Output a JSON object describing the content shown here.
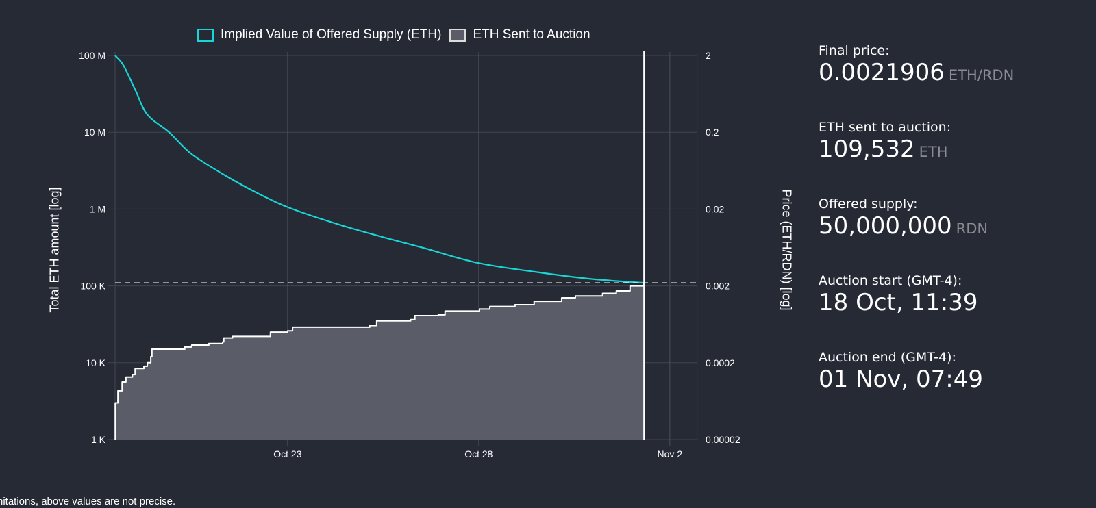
{
  "chart_data": {
    "type": "area",
    "legend": [
      {
        "name": "Implied Value of Offered Supply (ETH)",
        "style": "line",
        "color": "#19d6d6"
      },
      {
        "name": "ETH Sent to Auction",
        "style": "area",
        "color": "#5a5d67"
      }
    ],
    "legend_position": "top-center",
    "xlabel": "",
    "ylabel_left": "Total ETH amount [log]",
    "ylabel_right": "Price (ETH/RDN) [log]",
    "yscale": "log",
    "ylim_left": [
      1000,
      100000000
    ],
    "ylim_right": [
      2e-05,
      2
    ],
    "yticks_left": [
      {
        "value": 100000000,
        "label": "100 M"
      },
      {
        "value": 10000000,
        "label": "10 M"
      },
      {
        "value": 1000000,
        "label": "1 M"
      },
      {
        "value": 100000,
        "label": "100 K"
      },
      {
        "value": 10000,
        "label": "10 K"
      },
      {
        "value": 1000,
        "label": "1 K"
      }
    ],
    "yticks_right": [
      {
        "value": 2,
        "label": "2"
      },
      {
        "value": 0.2,
        "label": "0.2"
      },
      {
        "value": 0.02,
        "label": "0.02"
      },
      {
        "value": 0.002,
        "label": "0.002"
      },
      {
        "value": 0.0002,
        "label": "0.0002"
      },
      {
        "value": 2e-05,
        "label": "0.00002"
      }
    ],
    "x_unit": "days since Oct 18 00:00",
    "xlim": [
      0.486,
      15.72
    ],
    "xticks": [
      {
        "value": 5,
        "label": "Oct 23"
      },
      {
        "value": 10,
        "label": "Oct 28"
      },
      {
        "value": 15,
        "label": "Nov 2"
      }
    ],
    "grid": true,
    "end_marker_x": 14.325,
    "final_level": 109532,
    "series": [
      {
        "name": "Implied Value of Offered Supply (ETH)",
        "type": "line",
        "color": "#19d6d6",
        "points": [
          [
            0.486,
            100000000
          ],
          [
            0.7,
            75000000
          ],
          [
            1.01,
            36000000
          ],
          [
            1.33,
            17000000
          ],
          [
            1.9,
            10000000
          ],
          [
            2.49,
            5200000
          ],
          [
            3.39,
            2700000
          ],
          [
            4.28,
            1550000
          ],
          [
            5.13,
            1000000
          ],
          [
            6.43,
            610000
          ],
          [
            7.51,
            430000
          ],
          [
            8.58,
            310000
          ],
          [
            9.96,
            200000
          ],
          [
            11.45,
            153000
          ],
          [
            12.89,
            124000
          ],
          [
            14.325,
            109532
          ]
        ]
      },
      {
        "name": "ETH Sent to Auction",
        "type": "step-area",
        "color": "#5a5d67",
        "points": [
          [
            0.486,
            1000
          ],
          [
            0.49,
            3000
          ],
          [
            0.56,
            4300
          ],
          [
            0.67,
            5600
          ],
          [
            0.77,
            6500
          ],
          [
            0.94,
            7000
          ],
          [
            1.01,
            8400
          ],
          [
            1.24,
            9000
          ],
          [
            1.33,
            10000
          ],
          [
            1.42,
            12000
          ],
          [
            1.45,
            15000
          ],
          [
            2.31,
            16000
          ],
          [
            2.49,
            17000
          ],
          [
            2.94,
            17800
          ],
          [
            3.3,
            18600
          ],
          [
            3.33,
            21000
          ],
          [
            3.56,
            22000
          ],
          [
            4.55,
            25000
          ],
          [
            5.0,
            26000
          ],
          [
            5.13,
            29000
          ],
          [
            7.15,
            30500
          ],
          [
            7.33,
            35000
          ],
          [
            8.22,
            36500
          ],
          [
            8.33,
            41000
          ],
          [
            8.94,
            42000
          ],
          [
            9.12,
            47000
          ],
          [
            10.02,
            50000
          ],
          [
            10.29,
            54000
          ],
          [
            10.95,
            57000
          ],
          [
            11.45,
            63000
          ],
          [
            12.17,
            70000
          ],
          [
            12.53,
            74000
          ],
          [
            13.24,
            80000
          ],
          [
            13.6,
            86000
          ],
          [
            13.96,
            100000
          ],
          [
            14.325,
            109532
          ]
        ]
      }
    ]
  },
  "stats": [
    {
      "label": "Final price:",
      "value": "0.0021906",
      "unit": "ETH/RDN"
    },
    {
      "label": "ETH sent to auction:",
      "value": "109,532",
      "unit": "ETH"
    },
    {
      "label": "Offered supply:",
      "value": "50,000,000",
      "unit": "RDN"
    },
    {
      "label": "Auction start (GMT-4):",
      "value": "18 Oct, 11:39",
      "unit": ""
    },
    {
      "label": "Auction end (GMT-4):",
      "value": "01 Nov, 07:49",
      "unit": ""
    }
  ],
  "footnote": "nitations, above values are not precise."
}
